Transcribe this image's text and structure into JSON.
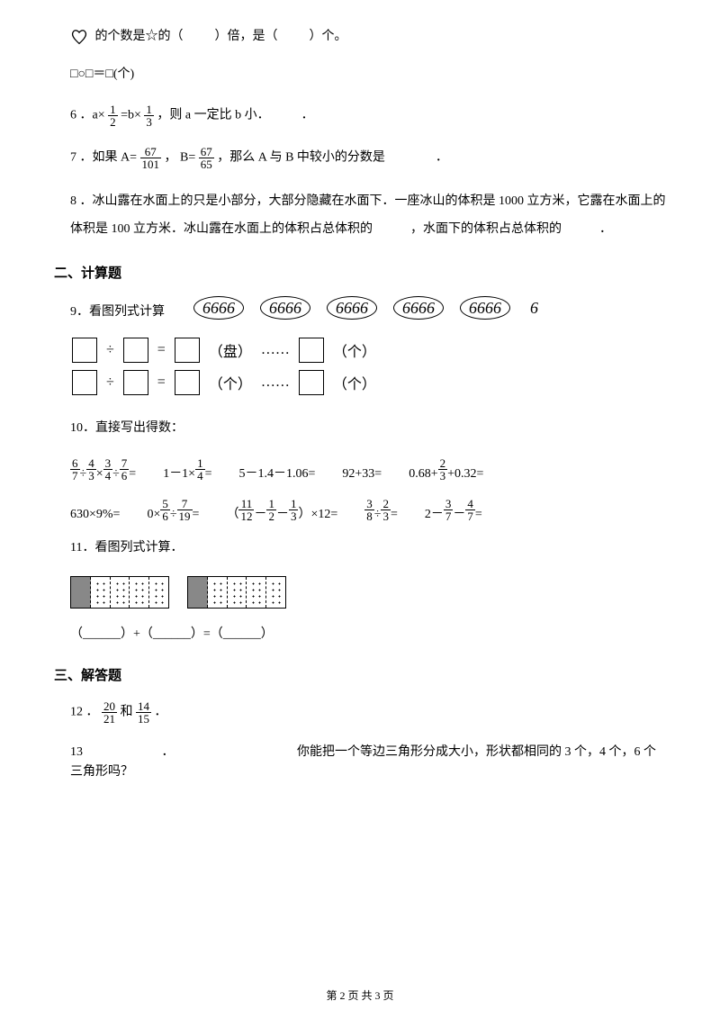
{
  "q_heart": {
    "text_before": "的个数是☆的（",
    "blank": "　　",
    "text_mid": "）倍，是（",
    "text_after": "）个。"
  },
  "q_boxes": "□○□＝□(个)",
  "q6": {
    "num": "6",
    "prefix": "．a×",
    "frac1_num": "1",
    "frac1_den": "2",
    "mid": "=b×",
    "frac2_num": "1",
    "frac2_den": "3",
    "suffix": "，则 a 一定比 b 小．　　　．"
  },
  "q7": {
    "num": "7",
    "prefix": "．如果",
    "a_label": "A=",
    "a_num": "67",
    "a_den": "101",
    "comma": "，",
    "b_label": "B=",
    "b_num": "67",
    "b_den": "65",
    "suffix": "，那么 A 与 B 中较小的分数是　　　　．"
  },
  "q8": {
    "num": "8",
    "text": "．冰山露在水面上的只是小部分，大部分隐藏在水面下．一座冰山的体积是 1000 立方米，它露在水面上的体积是 100 立方米．冰山露在水面上的体积占总体积的　　　，水面下的体积占总体积的　　　．"
  },
  "section2": "二、计算题",
  "q9": {
    "num": "9",
    "label": "．看图列式计算",
    "oval_content": "6666",
    "loop": "6",
    "eq1_unit1": "（盘）",
    "eq1_dots": "……",
    "eq1_unit2": "（个）",
    "eq2_unit1": "（个）",
    "eq2_unit2": "（个）"
  },
  "q10": {
    "num": "10",
    "label": "．直接写出得数：",
    "items_row1": [
      {
        "type": "fracchain",
        "parts": [
          {
            "n": "6",
            "d": "7"
          },
          "÷",
          {
            "n": "4",
            "d": "3"
          },
          "×",
          {
            "n": "3",
            "d": "4"
          },
          "÷",
          {
            "n": "7",
            "d": "6"
          },
          "="
        ]
      },
      {
        "type": "text",
        "prefix": "1－1×",
        "frac": {
          "n": "1",
          "d": "4"
        },
        "suffix": "="
      },
      {
        "type": "plain",
        "text": "5－1.4－1.06="
      },
      {
        "type": "plain",
        "text": "92+33="
      },
      {
        "type": "text",
        "prefix": "0.68+",
        "frac": {
          "n": "2",
          "d": "3"
        },
        "suffix": "+0.32="
      }
    ],
    "items_row2": [
      {
        "type": "plain",
        "text": "630×9%="
      },
      {
        "type": "fracchain",
        "parts": [
          "0×",
          {
            "n": "5",
            "d": "6"
          },
          "÷",
          {
            "n": "7",
            "d": "19"
          },
          "="
        ]
      },
      {
        "type": "fracchain",
        "parts": [
          "（",
          {
            "n": "11",
            "d": "12"
          },
          "－",
          {
            "n": "1",
            "d": "2"
          },
          "－",
          {
            "n": "1",
            "d": "3"
          },
          "）×12="
        ]
      },
      {
        "type": "fracchain",
        "parts": [
          {
            "n": "3",
            "d": "8"
          },
          "÷",
          {
            "n": "2",
            "d": "3"
          },
          "="
        ]
      },
      {
        "type": "fracchain",
        "parts": [
          "2－",
          {
            "n": "3",
            "d": "7"
          },
          "－",
          {
            "n": "4",
            "d": "7"
          },
          "="
        ]
      }
    ]
  },
  "q11": {
    "num": "11",
    "label": "．看图列式计算．",
    "eq": "（______）+（______）=（______）"
  },
  "section3": "三、解答题",
  "q12": {
    "num": "12",
    "prefix": "．",
    "f1_num": "20",
    "f1_den": "21",
    "and": "和",
    "f2_num": "14",
    "f2_den": "15",
    "suffix": "．"
  },
  "q13": {
    "num": "13",
    "gap": "　　　　　　．　　　　　　　　　　",
    "text": "你能把一个等边三角形分成大小，形状都相同的 3 个，4 个，6 个三角形吗？"
  },
  "footer": "第 2 页 共 3 页"
}
